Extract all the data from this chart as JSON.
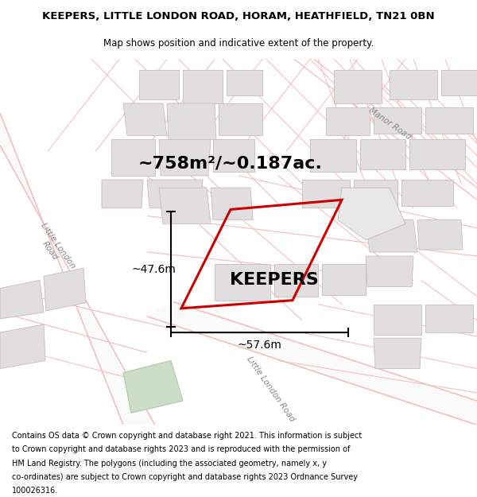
{
  "title": "KEEPERS, LITTLE LONDON ROAD, HORAM, HEATHFIELD, TN21 0BN",
  "subtitle": "Map shows position and indicative extent of the property.",
  "area_text": "~758m²/~0.187ac.",
  "property_label": "KEEPERS",
  "dim_width": "~57.6m",
  "dim_height": "~47.6m",
  "footer_lines": [
    "Contains OS data © Crown copyright and database right 2021. This information is subject",
    "to Crown copyright and database rights 2023 and is reproduced with the permission of",
    "HM Land Registry. The polygons (including the associated geometry, namely x, y",
    "co-ordinates) are subject to Crown copyright and database rights 2023 Ordnance Survey",
    "100026316."
  ],
  "map_bg": "#ffffff",
  "road_stroke": "#f5c0c0",
  "road_fill": "#f5c0c0",
  "building_fill": "#e0dede",
  "building_edge": "#ccbbbb",
  "green_fill": "#cddec8",
  "green_edge": "#b0c8a8",
  "property_color": "#cc0000",
  "title_fontsize": 9.5,
  "subtitle_fontsize": 8.5,
  "area_fontsize": 16,
  "label_fontsize": 16,
  "dim_fontsize": 10,
  "road_label_fontsize": 7.5,
  "footer_fontsize": 7.0
}
